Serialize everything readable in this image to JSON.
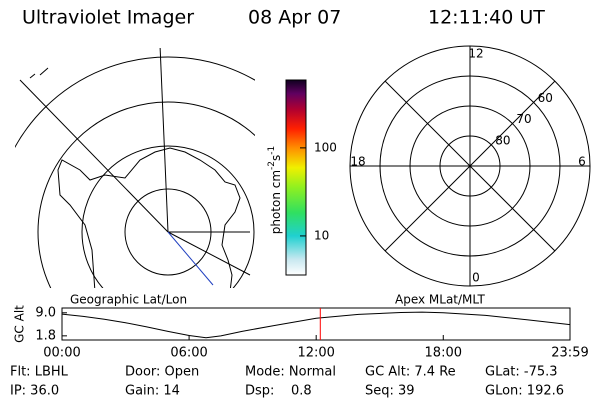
{
  "header": {
    "title": "Ultraviolet Imager",
    "date": "08 Apr 07",
    "time": "12:11:40 UT"
  },
  "left_panel": {
    "label": "Geographic Lat/Lon"
  },
  "colorbar": {
    "label": [
      "photon cm",
      "-2",
      "s",
      "-1"
    ],
    "log": true,
    "ylim": [
      3.6,
      590
    ],
    "yticks": [
      10,
      100
    ]
  },
  "right_panel": {
    "label": "Apex MLat/MLT",
    "mlt_ticks": [
      12,
      18,
      6,
      0
    ],
    "mlat_lim": [
      50,
      90
    ],
    "mlat_ticks": [
      60,
      70,
      80
    ]
  },
  "chart_data": {
    "type": "line",
    "y_label": "GC Alt",
    "x": [
      0,
      1,
      2,
      3,
      4,
      5,
      6,
      6.8,
      7.5,
      8.5,
      10,
      12,
      14,
      16,
      17,
      18,
      20,
      22,
      23.983
    ],
    "values": [
      8.6,
      7.9,
      7.0,
      5.9,
      4.6,
      3.2,
      1.9,
      1.2,
      1.8,
      3.2,
      5.0,
      7.3,
      8.5,
      9.1,
      9.2,
      9.0,
      8.2,
      6.8,
      5.3
    ],
    "color": "#000000",
    "xlim": [
      0,
      23.983
    ],
    "ylim": [
      0.5,
      10.5
    ],
    "xticks": [
      {
        "value": 0,
        "label": "00:00"
      },
      {
        "value": 6,
        "label": "06:00"
      },
      {
        "value": 12,
        "label": "12:00"
      },
      {
        "value": 18,
        "label": "18:00"
      },
      {
        "value": 23.983,
        "label": "23:59"
      }
    ],
    "yticks": [
      {
        "value": 9,
        "label": "9.0"
      },
      {
        "value": 1.8,
        "label": "1.8"
      }
    ],
    "marker_x": 12.194,
    "marker_color": "#ff0000"
  },
  "info": {
    "rows": [
      [
        "Flt: LBHL",
        "Door: Open",
        "Mode: Normal",
        "GC Alt: 7.4 Re",
        "GLat: -75.3"
      ],
      [
        "IP: 36.0",
        "Gain: 14",
        "Dsp:    0.8",
        "Seq: 39",
        "GLon: 192.6"
      ]
    ]
  }
}
